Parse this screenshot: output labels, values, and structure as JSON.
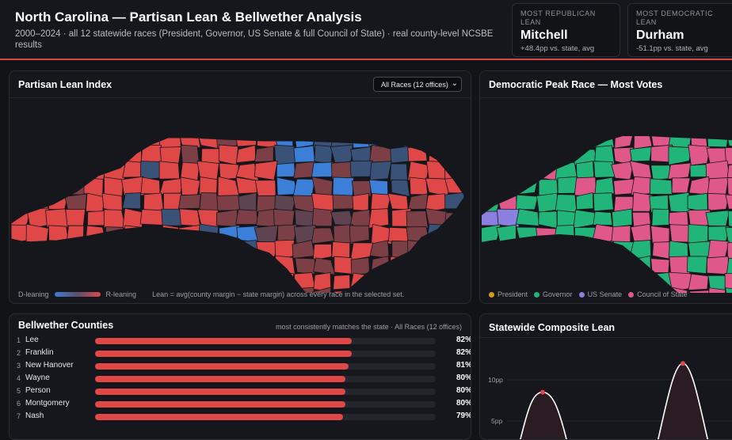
{
  "header": {
    "title": "North Carolina — Partisan Lean & Bellwether Analysis",
    "subtitle": "2000–2024 · all 12 statewide races (President, Governor, US Senate & full Council of State) · real county-level NCSBE results"
  },
  "kpis": [
    {
      "label": "MOST REPUBLICAN LEAN",
      "value": "Mitchell",
      "sub": "+48.4pp vs. state, avg"
    },
    {
      "label": "MOST DEMOCRATIC LEAN",
      "value": "Durham",
      "sub": "-51.1pp vs. state, avg"
    }
  ],
  "lean_panel": {
    "title": "Partisan Lean Index",
    "select": "All Races (12 offices)",
    "legend_left": "D-leaning",
    "legend_right": "R-leaning",
    "legend_note": "Lean = avg(county margin − state margin) across every race in the selected set.",
    "colors": {
      "d": "#3b7fd8",
      "r": "#e04848",
      "mid": "#5a4e6a"
    }
  },
  "peak_panel": {
    "title": "Democratic Peak Race — Most Votes",
    "legend": [
      {
        "label": "President",
        "color": "#d99a1e"
      },
      {
        "label": "Governor",
        "color": "#22b57a"
      },
      {
        "label": "US Senate",
        "color": "#8b7fe0"
      },
      {
        "label": "Council of State",
        "color": "#e0588a"
      }
    ]
  },
  "bellwether": {
    "title": "Bellwether Counties",
    "note": "most consistently matches the state · All Races (12 offices)",
    "rows": [
      {
        "rank": "1",
        "name": "Lee",
        "pct": "82%",
        "value": 82
      },
      {
        "rank": "2",
        "name": "Franklin",
        "pct": "82%",
        "value": 82
      },
      {
        "rank": "3",
        "name": "New Hanover",
        "pct": "81%",
        "value": 81
      },
      {
        "rank": "4",
        "name": "Wayne",
        "pct": "80%",
        "value": 80
      },
      {
        "rank": "5",
        "name": "Person",
        "pct": "80%",
        "value": 80
      },
      {
        "rank": "6",
        "name": "Montgomery",
        "pct": "80%",
        "value": 80
      },
      {
        "rank": "7",
        "name": "Nash",
        "pct": "79%",
        "value": 79
      }
    ]
  },
  "composite": {
    "title": "Statewide Composite Lean",
    "y_ticks": [
      "10pp",
      "5pp"
    ]
  },
  "chart_data": [
    {
      "type": "bar",
      "title": "Bellwether Counties",
      "categories": [
        "Lee",
        "Franklin",
        "New Hanover",
        "Wayne",
        "Person",
        "Montgomery",
        "Nash"
      ],
      "values": [
        82,
        82,
        81,
        80,
        80,
        80,
        79
      ],
      "ylim": [
        0,
        100
      ]
    },
    {
      "type": "line",
      "title": "Statewide Composite Lean",
      "y_ticks": [
        "10pp",
        "5pp"
      ],
      "peaks": [
        {
          "y": 8.5
        },
        {
          "y": 12
        }
      ]
    }
  ]
}
